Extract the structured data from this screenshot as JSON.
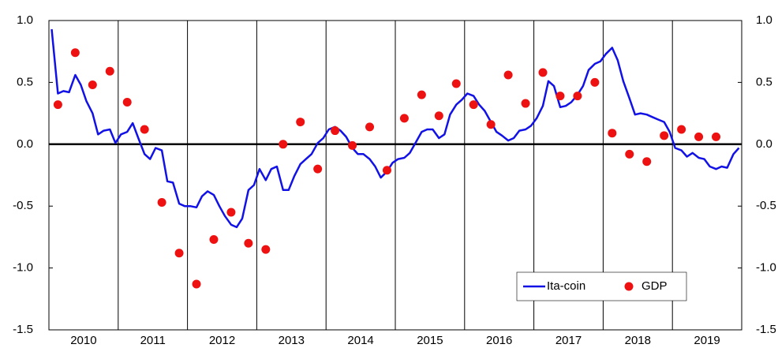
{
  "chart_data": {
    "type": "line_scatter",
    "xlim": [
      2010,
      2020
    ],
    "xticks": [
      {
        "value": 2010.5,
        "label": "2010"
      },
      {
        "value": 2011.5,
        "label": "2011"
      },
      {
        "value": 2012.5,
        "label": "2012"
      },
      {
        "value": 2013.5,
        "label": "2013"
      },
      {
        "value": 2014.5,
        "label": "2014"
      },
      {
        "value": 2015.5,
        "label": "2015"
      },
      {
        "value": 2016.5,
        "label": "2016"
      },
      {
        "value": 2017.5,
        "label": "2017"
      },
      {
        "value": 2018.5,
        "label": "2018"
      },
      {
        "value": 2019.5,
        "label": "2019"
      }
    ],
    "x_gridlines": [
      2011,
      2012,
      2013,
      2014,
      2015,
      2016,
      2017,
      2018,
      2019
    ],
    "ylim": [
      -1.5,
      1.0
    ],
    "yticks": [
      {
        "value": 1.0,
        "label": "1.0"
      },
      {
        "value": 0.5,
        "label": "0.5"
      },
      {
        "value": 0.0,
        "label": "0.0"
      },
      {
        "value": -0.5,
        "label": "-0.5"
      },
      {
        "value": -1.0,
        "label": "-1.0"
      },
      {
        "value": -1.5,
        "label": "-1.5"
      }
    ],
    "y2lim": [
      -1.5,
      1.0
    ],
    "y2ticks": [
      {
        "value": 1.0,
        "label": "1.0"
      },
      {
        "value": 0.5,
        "label": "0.5"
      },
      {
        "value": 0.0,
        "label": "0.0"
      },
      {
        "value": -0.5,
        "label": "-0.5"
      },
      {
        "value": -1.0,
        "label": "-1.0"
      },
      {
        "value": -1.5,
        "label": "-1.5"
      }
    ],
    "zero_line": true,
    "legend": "lower right",
    "series": [
      {
        "name": "Ita-coin",
        "type": "line",
        "color": "#1212e6",
        "x": [
          2010.04,
          2010.13,
          2010.21,
          2010.29,
          2010.38,
          2010.46,
          2010.54,
          2010.63,
          2010.71,
          2010.79,
          2010.88,
          2010.96,
          2011.04,
          2011.13,
          2011.21,
          2011.29,
          2011.38,
          2011.46,
          2011.54,
          2011.63,
          2011.71,
          2011.79,
          2011.88,
          2011.96,
          2012.04,
          2012.13,
          2012.21,
          2012.29,
          2012.38,
          2012.46,
          2012.54,
          2012.63,
          2012.71,
          2012.79,
          2012.88,
          2012.96,
          2013.04,
          2013.13,
          2013.21,
          2013.29,
          2013.38,
          2013.46,
          2013.54,
          2013.63,
          2013.71,
          2013.79,
          2013.88,
          2013.96,
          2014.04,
          2014.13,
          2014.21,
          2014.29,
          2014.38,
          2014.46,
          2014.54,
          2014.63,
          2014.71,
          2014.79,
          2014.88,
          2014.96,
          2015.04,
          2015.13,
          2015.21,
          2015.29,
          2015.38,
          2015.46,
          2015.54,
          2015.63,
          2015.71,
          2015.79,
          2015.88,
          2015.96,
          2016.04,
          2016.13,
          2016.21,
          2016.29,
          2016.38,
          2016.46,
          2016.54,
          2016.63,
          2016.71,
          2016.79,
          2016.88,
          2016.96,
          2017.04,
          2017.13,
          2017.21,
          2017.29,
          2017.38,
          2017.46,
          2017.54,
          2017.63,
          2017.71,
          2017.79,
          2017.88,
          2017.96,
          2018.04,
          2018.13,
          2018.21,
          2018.29,
          2018.38,
          2018.46,
          2018.54,
          2018.63,
          2018.71,
          2018.79,
          2018.88,
          2018.96,
          2019.04,
          2019.13,
          2019.21,
          2019.29,
          2019.38,
          2019.46,
          2019.54,
          2019.63,
          2019.71,
          2019.79,
          2019.88,
          2019.96
        ],
        "values": [
          0.93,
          0.41,
          0.43,
          0.42,
          0.56,
          0.48,
          0.35,
          0.25,
          0.08,
          0.11,
          0.12,
          0.01,
          0.08,
          0.1,
          0.17,
          0.05,
          -0.08,
          -0.12,
          -0.03,
          -0.05,
          -0.3,
          -0.31,
          -0.48,
          -0.5,
          -0.5,
          -0.51,
          -0.42,
          -0.38,
          -0.41,
          -0.5,
          -0.58,
          -0.65,
          -0.67,
          -0.6,
          -0.37,
          -0.33,
          -0.2,
          -0.29,
          -0.2,
          -0.18,
          -0.37,
          -0.37,
          -0.26,
          -0.16,
          -0.12,
          -0.08,
          0.01,
          0.05,
          0.12,
          0.14,
          0.11,
          0.06,
          -0.03,
          -0.08,
          -0.08,
          -0.12,
          -0.18,
          -0.27,
          -0.22,
          -0.15,
          -0.12,
          -0.11,
          -0.07,
          0.01,
          0.1,
          0.12,
          0.12,
          0.05,
          0.08,
          0.24,
          0.32,
          0.36,
          0.41,
          0.39,
          0.32,
          0.27,
          0.18,
          0.1,
          0.07,
          0.03,
          0.05,
          0.11,
          0.12,
          0.15,
          0.21,
          0.31,
          0.51,
          0.47,
          0.3,
          0.31,
          0.34,
          0.4,
          0.47,
          0.6,
          0.65,
          0.67,
          0.73,
          0.78,
          0.68,
          0.51,
          0.37,
          0.24,
          0.25,
          0.24,
          0.22,
          0.2,
          0.18,
          0.1,
          -0.03,
          -0.05,
          -0.1,
          -0.07,
          -0.11,
          -0.12,
          -0.18,
          -0.2,
          -0.18,
          -0.19,
          -0.08,
          -0.03
        ]
      },
      {
        "name": "GDP",
        "type": "scatter",
        "color": "#ee1111",
        "x": [
          2010.13,
          2010.38,
          2010.63,
          2010.88,
          2011.13,
          2011.38,
          2011.63,
          2011.88,
          2012.13,
          2012.38,
          2012.63,
          2012.88,
          2013.13,
          2013.38,
          2013.63,
          2013.88,
          2014.13,
          2014.38,
          2014.63,
          2014.88,
          2015.13,
          2015.38,
          2015.63,
          2015.88,
          2016.13,
          2016.38,
          2016.63,
          2016.88,
          2017.13,
          2017.38,
          2017.63,
          2017.88,
          2018.13,
          2018.38,
          2018.63,
          2018.88,
          2019.13,
          2019.38,
          2019.63
        ],
        "values": [
          0.32,
          0.74,
          0.48,
          0.59,
          0.34,
          0.12,
          -0.47,
          -0.88,
          -1.13,
          -0.77,
          -0.55,
          -0.8,
          -0.85,
          0.0,
          0.18,
          -0.2,
          0.11,
          -0.01,
          0.14,
          -0.21,
          0.21,
          0.4,
          0.23,
          0.49,
          0.32,
          0.16,
          0.56,
          0.33,
          0.58,
          0.39,
          0.39,
          0.5,
          0.09,
          -0.08,
          -0.14,
          0.07,
          0.12,
          0.06,
          0.06
        ]
      }
    ]
  }
}
